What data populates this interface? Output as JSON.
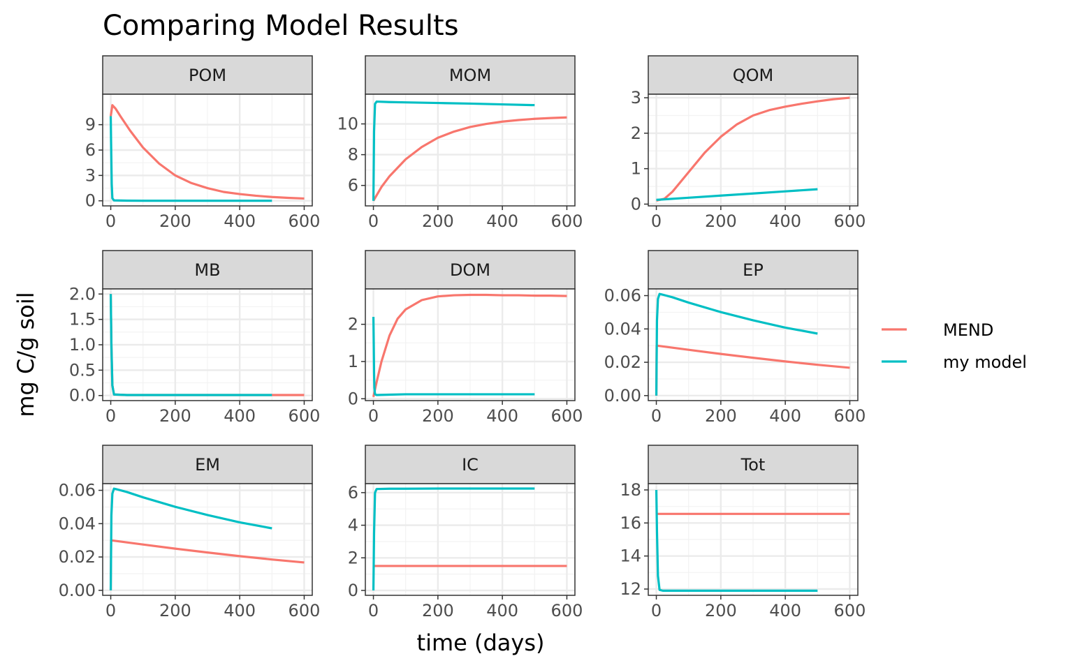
{
  "title": "Comparing Model Results",
  "xlabel": "time (days)",
  "ylabel": "mg C/g soil",
  "colors": {
    "MEND": "#F8766D",
    "my model": "#00BFC4"
  },
  "legend": {
    "position": "right",
    "entries": [
      "MEND",
      "my model"
    ]
  },
  "chart_data": {
    "type": "line",
    "facets": [
      {
        "name": "POM",
        "xlim": [
          -25,
          625
        ],
        "ylim": [
          -0.6,
          12.6
        ],
        "xticks": [
          0,
          200,
          400,
          600
        ],
        "yticks": [
          0,
          3,
          6,
          9
        ],
        "ytick_labels": [
          "0",
          "3",
          "6",
          "9"
        ],
        "series": [
          {
            "name": "MEND",
            "x": [
              0,
              5,
              15,
              30,
              60,
              100,
              150,
              200,
              250,
              300,
              350,
              400,
              450,
              500,
              550,
              600
            ],
            "y": [
              10,
              11.3,
              10.9,
              10.0,
              8.3,
              6.3,
              4.4,
              3.0,
              2.1,
              1.5,
              1.05,
              0.8,
              0.6,
              0.45,
              0.35,
              0.27
            ]
          },
          {
            "name": "my model",
            "x": [
              0,
              1,
              3,
              5,
              10,
              50,
              100,
              200,
              300,
              400,
              500
            ],
            "y": [
              10,
              7,
              2,
              0.3,
              0.05,
              0.02,
              0.01,
              0.01,
              0.01,
              0.01,
              0.01
            ]
          }
        ]
      },
      {
        "name": "MOM",
        "xlim": [
          -25,
          625
        ],
        "ylim": [
          4.67,
          11.93
        ],
        "xticks": [
          0,
          200,
          400,
          600
        ],
        "yticks": [
          6,
          8,
          10
        ],
        "ytick_labels": [
          "6",
          "8",
          "10"
        ],
        "series": [
          {
            "name": "MEND",
            "x": [
              0,
              25,
              50,
              100,
              150,
              200,
              250,
              300,
              350,
              400,
              450,
              500,
              550,
              600
            ],
            "y": [
              5.0,
              5.9,
              6.6,
              7.7,
              8.5,
              9.1,
              9.5,
              9.8,
              10.0,
              10.15,
              10.25,
              10.33,
              10.38,
              10.42
            ]
          },
          {
            "name": "my model",
            "x": [
              0,
              2,
              5,
              10,
              50,
              100,
              200,
              300,
              400,
              500
            ],
            "y": [
              5.0,
              9.5,
              11.3,
              11.45,
              11.42,
              11.4,
              11.36,
              11.32,
              11.27,
              11.22
            ]
          }
        ]
      },
      {
        "name": "QOM",
        "xlim": [
          -25,
          625
        ],
        "ylim": [
          -0.05,
          3.1
        ],
        "xticks": [
          0,
          200,
          400,
          600
        ],
        "yticks": [
          0,
          1,
          2,
          3
        ],
        "ytick_labels": [
          "0",
          "1",
          "2",
          "3"
        ],
        "series": [
          {
            "name": "MEND",
            "x": [
              0,
              25,
              50,
              100,
              150,
              200,
              250,
              300,
              350,
              400,
              450,
              500,
              550,
              600
            ],
            "y": [
              0.1,
              0.15,
              0.35,
              0.9,
              1.45,
              1.9,
              2.25,
              2.5,
              2.65,
              2.75,
              2.83,
              2.9,
              2.96,
              3.0
            ]
          },
          {
            "name": "my model",
            "x": [
              0,
              100,
              200,
              300,
              400,
              500
            ],
            "y": [
              0.12,
              0.18,
              0.24,
              0.3,
              0.36,
              0.42
            ]
          }
        ]
      },
      {
        "name": "MB",
        "xlim": [
          -25,
          625
        ],
        "ylim": [
          -0.1,
          2.1
        ],
        "xticks": [
          0,
          200,
          400,
          600
        ],
        "yticks": [
          0,
          0.5,
          1.0,
          1.5,
          2.0
        ],
        "ytick_labels": [
          "0.0",
          "0.5",
          "1.0",
          "1.5",
          "2.0"
        ],
        "series": [
          {
            "name": "MEND",
            "x": [
              0,
              2,
              5,
              10,
              50,
              100,
              200,
              300,
              400,
              500,
              550,
              600
            ],
            "y": [
              2.0,
              1.0,
              0.2,
              0.02,
              0.01,
              0.01,
              0.01,
              0.01,
              0.01,
              0.01,
              0.01,
              0.01
            ]
          },
          {
            "name": "my model",
            "x": [
              0,
              2,
              5,
              10,
              50,
              100,
              200,
              300,
              400,
              500
            ],
            "y": [
              2.0,
              1.0,
              0.2,
              0.02,
              0.01,
              0.01,
              0.01,
              0.01,
              0.01,
              0.01
            ]
          }
        ]
      },
      {
        "name": "DOM",
        "xlim": [
          -25,
          625
        ],
        "ylim": [
          -0.05,
          2.95
        ],
        "xticks": [
          0,
          200,
          400,
          600
        ],
        "yticks": [
          0,
          1,
          2
        ],
        "ytick_labels": [
          "0",
          "1",
          "2"
        ],
        "series": [
          {
            "name": "MEND",
            "x": [
              0,
              10,
              25,
              50,
              75,
              100,
              150,
              200,
              250,
              300,
              350,
              400,
              450,
              500,
              550,
              600
            ],
            "y": [
              0.05,
              0.45,
              1.0,
              1.7,
              2.15,
              2.4,
              2.65,
              2.75,
              2.78,
              2.79,
              2.79,
              2.78,
              2.78,
              2.77,
              2.77,
              2.76
            ]
          },
          {
            "name": "my model",
            "x": [
              0,
              1,
              2,
              3,
              5,
              10,
              50,
              100,
              200,
              300,
              400,
              500
            ],
            "y": [
              2.2,
              1.5,
              0.7,
              0.3,
              0.12,
              0.1,
              0.11,
              0.12,
              0.12,
              0.12,
              0.12,
              0.12
            ]
          }
        ]
      },
      {
        "name": "EP",
        "xlim": [
          -25,
          625
        ],
        "ylim": [
          -0.003,
          0.064
        ],
        "xticks": [
          0,
          200,
          400,
          600
        ],
        "yticks": [
          0,
          0.02,
          0.04,
          0.06
        ],
        "ytick_labels": [
          "0.00",
          "0.02",
          "0.04",
          "0.06"
        ],
        "series": [
          {
            "name": "MEND",
            "x": [
              0,
              1,
              100,
              200,
              300,
              400,
              500,
              600
            ],
            "y": [
              0.0,
              0.03,
              0.0275,
              0.025,
              0.0227,
              0.0205,
              0.0185,
              0.0167
            ]
          },
          {
            "name": "my model",
            "x": [
              0,
              2,
              5,
              10,
              15,
              50,
              100,
              200,
              300,
              400,
              500
            ],
            "y": [
              0.0,
              0.045,
              0.058,
              0.061,
              0.0608,
              0.059,
              0.0558,
              0.0501,
              0.0452,
              0.0408,
              0.0372
            ]
          }
        ]
      },
      {
        "name": "EM",
        "xlim": [
          -25,
          625
        ],
        "ylim": [
          -0.003,
          0.064
        ],
        "xticks": [
          0,
          200,
          400,
          600
        ],
        "yticks": [
          0,
          0.02,
          0.04,
          0.06
        ],
        "ytick_labels": [
          "0.00",
          "0.02",
          "0.04",
          "0.06"
        ],
        "series": [
          {
            "name": "MEND",
            "x": [
              0,
              1,
              100,
              200,
              300,
              400,
              500,
              600
            ],
            "y": [
              0.0,
              0.03,
              0.0275,
              0.025,
              0.0227,
              0.0205,
              0.0185,
              0.0167
            ]
          },
          {
            "name": "my model",
            "x": [
              0,
              2,
              5,
              10,
              15,
              50,
              100,
              200,
              300,
              400,
              500
            ],
            "y": [
              0.0,
              0.045,
              0.058,
              0.061,
              0.0608,
              0.059,
              0.0558,
              0.0501,
              0.0452,
              0.0408,
              0.0372
            ]
          }
        ]
      },
      {
        "name": "IC",
        "xlim": [
          -25,
          625
        ],
        "ylim": [
          -0.3,
          6.55
        ],
        "xticks": [
          0,
          200,
          400,
          600
        ],
        "yticks": [
          0,
          2,
          4,
          6
        ],
        "ytick_labels": [
          "0",
          "2",
          "4",
          "6"
        ],
        "series": [
          {
            "name": "MEND",
            "x": [
              0,
              100,
              200,
              300,
              400,
              500,
              600
            ],
            "y": [
              1.5,
              1.5,
              1.5,
              1.5,
              1.5,
              1.5,
              1.5
            ]
          },
          {
            "name": "my model",
            "x": [
              0,
              2,
              5,
              10,
              50,
              100,
              200,
              300,
              400,
              500
            ],
            "y": [
              0.0,
              3.5,
              6.0,
              6.22,
              6.24,
              6.24,
              6.25,
              6.25,
              6.25,
              6.25
            ]
          }
        ]
      },
      {
        "name": "Tot",
        "xlim": [
          -25,
          625
        ],
        "ylim": [
          11.62,
          18.38
        ],
        "xticks": [
          0,
          200,
          400,
          600
        ],
        "yticks": [
          12,
          14,
          16,
          18
        ],
        "ytick_labels": [
          "12",
          "14",
          "16",
          "18"
        ],
        "series": [
          {
            "name": "MEND",
            "x": [
              0,
              100,
              200,
              300,
              400,
              500,
              600
            ],
            "y": [
              16.55,
              16.55,
              16.55,
              16.55,
              16.55,
              16.55,
              16.55
            ]
          },
          {
            "name": "my model",
            "x": [
              0,
              2,
              5,
              10,
              20,
              50,
              100,
              200,
              300,
              400,
              500
            ],
            "y": [
              18.0,
              15.5,
              12.8,
              11.95,
              11.9,
              11.9,
              11.9,
              11.9,
              11.9,
              11.9,
              11.9
            ]
          }
        ]
      }
    ]
  }
}
